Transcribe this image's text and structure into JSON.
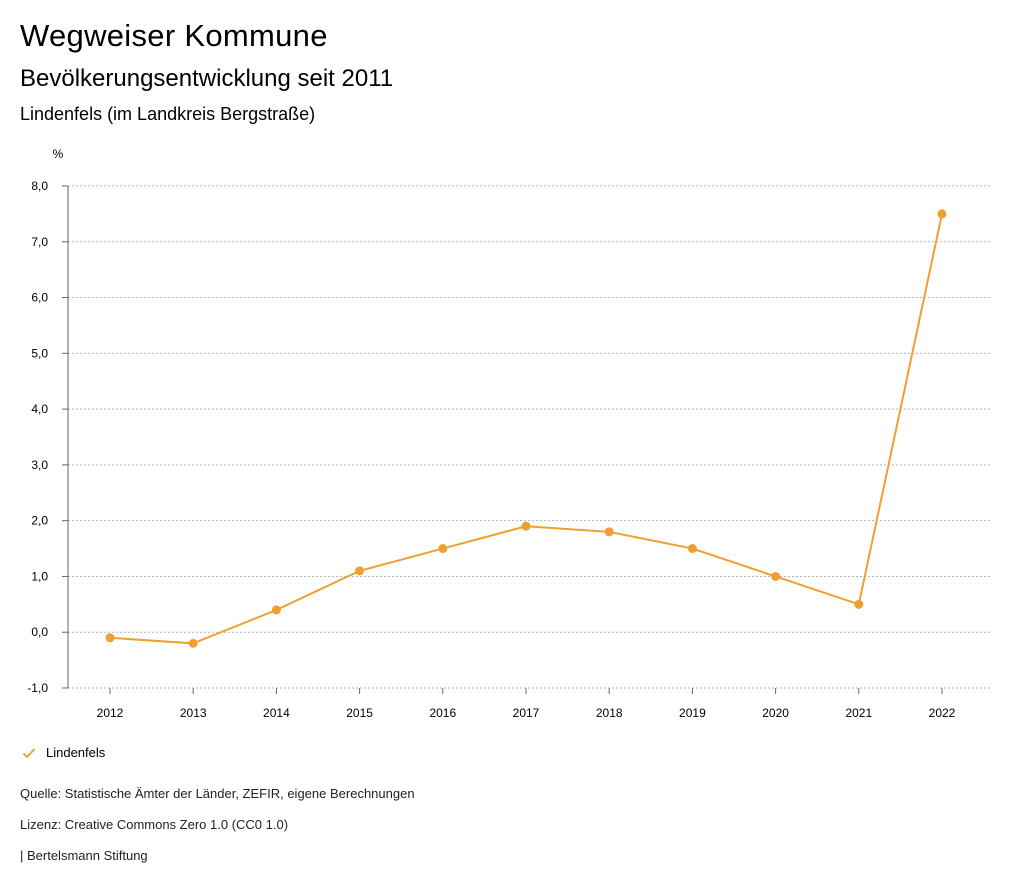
{
  "header": {
    "title": "Wegweiser Kommune",
    "subtitle": "Bevölkerungsentwicklung seit 2011",
    "region": "Lindenfels (im Landkreis Bergstraße)"
  },
  "chart_data": {
    "type": "line",
    "title": "Bevölkerungsentwicklung seit 2011",
    "xlabel": "",
    "ylabel": "%",
    "ylim": [
      -1.0,
      8.0
    ],
    "yticks": [
      -1.0,
      0.0,
      1.0,
      2.0,
      3.0,
      4.0,
      5.0,
      6.0,
      7.0,
      8.0
    ],
    "ytick_labels": [
      "-1,0",
      "0,0",
      "1,0",
      "2,0",
      "3,0",
      "4,0",
      "5,0",
      "6,0",
      "7,0",
      "8,0"
    ],
    "categories": [
      "2012",
      "2013",
      "2014",
      "2015",
      "2016",
      "2017",
      "2018",
      "2019",
      "2020",
      "2021",
      "2022"
    ],
    "series": [
      {
        "name": "Lindenfels",
        "color": "#f0a033",
        "values": [
          -0.1,
          -0.2,
          0.4,
          1.1,
          1.5,
          1.9,
          1.8,
          1.5,
          1.0,
          0.5,
          7.5
        ]
      }
    ],
    "grid": true,
    "legend": "bottom-left"
  },
  "legend": {
    "label": "Lindenfels",
    "icon": "checkmark-icon"
  },
  "footer": {
    "source": "Quelle: Statistische Ämter der Länder, ZEFIR, eigene Berechnungen",
    "license": "Lizenz: Creative Commons Zero 1.0 (CC0 1.0)",
    "publisher": "| Bertelsmann Stiftung"
  }
}
